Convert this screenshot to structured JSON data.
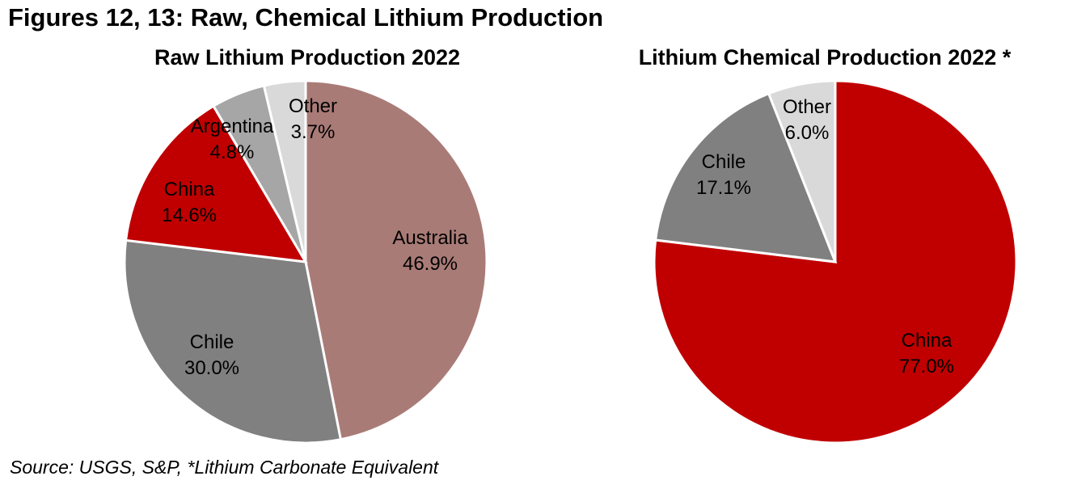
{
  "figure_title": "Figures 12, 13: Raw, Chemical Lithium Production",
  "source": "Source: USGS, S&P, *Lithium Carbonate Equivalent",
  "chart_data": [
    {
      "type": "pie",
      "title": "Raw Lithium Production 2022",
      "slices": [
        {
          "label": "Australia",
          "value": 46.9,
          "value_label": "46.9%",
          "color": "#a97b77"
        },
        {
          "label": "Chile",
          "value": 30.0,
          "value_label": "30.0%",
          "color": "#808080"
        },
        {
          "label": "China",
          "value": 14.6,
          "value_label": "14.6%",
          "color": "#c00000"
        },
        {
          "label": "Argentina",
          "value": 4.8,
          "value_label": "4.8%",
          "color": "#a6a6a6"
        },
        {
          "label": "Other",
          "value": 3.7,
          "value_label": "3.7%",
          "color": "#d9d9d9"
        }
      ]
    },
    {
      "type": "pie",
      "title": "Lithium Chemical Production 2022 *",
      "slices": [
        {
          "label": "China",
          "value": 77.0,
          "value_label": "77.0%",
          "color": "#c00000"
        },
        {
          "label": "Chile",
          "value": 17.1,
          "value_label": "17.1%",
          "color": "#808080"
        },
        {
          "label": "Other",
          "value": 6.0,
          "value_label": "6.0%",
          "color": "#d9d9d9"
        }
      ]
    }
  ]
}
